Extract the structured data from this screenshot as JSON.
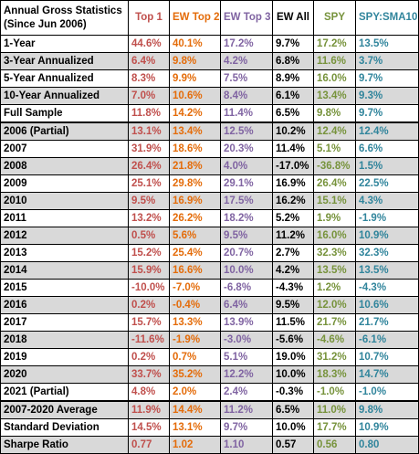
{
  "table": {
    "header_lines": [
      "Annual Gross Statistics",
      "(Since Jun 2006)"
    ],
    "columns": [
      {
        "key": "top1",
        "label": "Top 1",
        "color": "#c0504d"
      },
      {
        "key": "ew2",
        "label": "EW Top 2",
        "color": "#e46c0a"
      },
      {
        "key": "ew3",
        "label": "EW Top 3",
        "color": "#8064a2"
      },
      {
        "key": "ewall",
        "label": "EW All",
        "color": "#000000"
      },
      {
        "key": "spy",
        "label": "SPY",
        "color": "#77933c"
      },
      {
        "key": "spysma",
        "label": "SPY:SMA10",
        "color": "#31859c"
      }
    ],
    "rows": [
      {
        "label": "1-Year",
        "values": [
          "44.6%",
          "40.1%",
          "17.2%",
          "9.7%",
          "17.2%",
          "13.5%"
        ],
        "shade": "a"
      },
      {
        "label": "3-Year Annualized",
        "values": [
          "6.4%",
          "9.8%",
          "4.2%",
          "6.8%",
          "11.6%",
          "3.7%"
        ],
        "shade": "b"
      },
      {
        "label": "5-Year Annualized",
        "values": [
          "8.3%",
          "9.9%",
          "7.5%",
          "8.9%",
          "16.0%",
          "9.7%"
        ],
        "shade": "a"
      },
      {
        "label": "10-Year Annualized",
        "values": [
          "7.0%",
          "10.6%",
          "8.4%",
          "6.1%",
          "13.4%",
          "9.3%"
        ],
        "shade": "b"
      },
      {
        "label": "Full Sample",
        "values": [
          "11.8%",
          "14.2%",
          "11.4%",
          "6.5%",
          "9.8%",
          "9.7%"
        ],
        "shade": "a"
      },
      {
        "label": "2006 (Partial)",
        "values": [
          "13.1%",
          "13.4%",
          "12.5%",
          "10.2%",
          "12.4%",
          "12.4%"
        ],
        "shade": "b"
      },
      {
        "label": "2007",
        "values": [
          "31.9%",
          "18.6%",
          "20.3%",
          "11.4%",
          "5.1%",
          "6.6%"
        ],
        "shade": "a"
      },
      {
        "label": "2008",
        "values": [
          "26.4%",
          "21.8%",
          "4.0%",
          "-17.0%",
          "-36.8%",
          "1.5%"
        ],
        "shade": "b"
      },
      {
        "label": "2009",
        "values": [
          "25.1%",
          "29.8%",
          "29.1%",
          "16.9%",
          "26.4%",
          "22.5%"
        ],
        "shade": "a"
      },
      {
        "label": "2010",
        "values": [
          "9.5%",
          "16.9%",
          "17.5%",
          "16.2%",
          "15.1%",
          "4.3%"
        ],
        "shade": "b"
      },
      {
        "label": "2011",
        "values": [
          "13.2%",
          "26.2%",
          "18.2%",
          "5.2%",
          "1.9%",
          "-1.9%"
        ],
        "shade": "a"
      },
      {
        "label": "2012",
        "values": [
          "0.5%",
          "5.6%",
          "9.5%",
          "11.2%",
          "16.0%",
          "10.9%"
        ],
        "shade": "b"
      },
      {
        "label": "2013",
        "values": [
          "15.2%",
          "25.4%",
          "20.7%",
          "2.7%",
          "32.3%",
          "32.3%"
        ],
        "shade": "a"
      },
      {
        "label": "2014",
        "values": [
          "15.9%",
          "16.6%",
          "10.0%",
          "4.2%",
          "13.5%",
          "13.5%"
        ],
        "shade": "b"
      },
      {
        "label": "2015",
        "values": [
          "-10.0%",
          "-7.0%",
          "-6.8%",
          "-4.3%",
          "1.2%",
          "-4.3%"
        ],
        "shade": "a"
      },
      {
        "label": "2016",
        "values": [
          "0.2%",
          "-0.4%",
          "6.4%",
          "9.5%",
          "12.0%",
          "10.6%"
        ],
        "shade": "b"
      },
      {
        "label": "2017",
        "values": [
          "15.7%",
          "13.3%",
          "13.9%",
          "11.5%",
          "21.7%",
          "21.7%"
        ],
        "shade": "a"
      },
      {
        "label": "2018",
        "values": [
          "-11.6%",
          "-1.9%",
          "-3.0%",
          "-5.6%",
          "-4.6%",
          "-6.1%"
        ],
        "shade": "b"
      },
      {
        "label": "2019",
        "values": [
          "0.2%",
          "0.7%",
          "5.1%",
          "19.0%",
          "31.2%",
          "10.7%"
        ],
        "shade": "a"
      },
      {
        "label": "2020",
        "values": [
          "33.7%",
          "35.2%",
          "12.2%",
          "10.0%",
          "18.3%",
          "14.7%"
        ],
        "shade": "b"
      },
      {
        "label": "2021 (Partial)",
        "values": [
          "4.8%",
          "2.0%",
          "2.4%",
          "-0.3%",
          "-1.0%",
          "-1.0%"
        ],
        "shade": "a"
      },
      {
        "label": "2007-2020 Average",
        "values": [
          "11.9%",
          "14.4%",
          "11.2%",
          "6.5%",
          "11.0%",
          "9.8%"
        ],
        "shade": "b"
      },
      {
        "label": "Standard Deviation",
        "values": [
          "14.5%",
          "13.1%",
          "9.7%",
          "10.0%",
          "17.7%",
          "10.9%"
        ],
        "shade": "a"
      },
      {
        "label": "Sharpe Ratio",
        "values": [
          "0.77",
          "1.02",
          "1.10",
          "0.57",
          "0.56",
          "0.80"
        ],
        "shade": "b"
      }
    ]
  }
}
